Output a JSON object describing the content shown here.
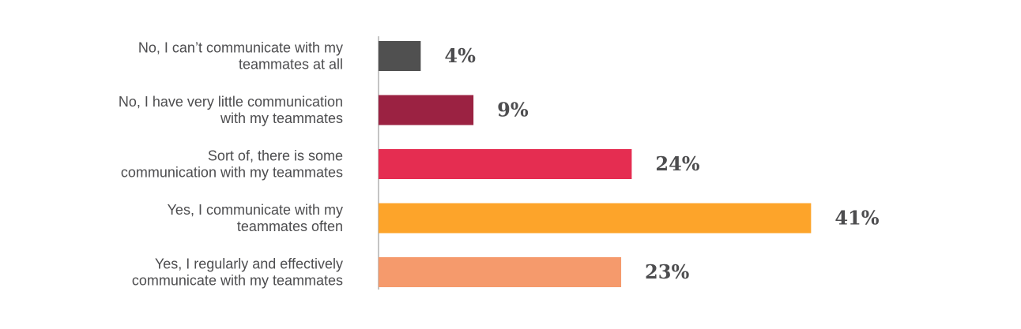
{
  "chart_data": {
    "type": "bar",
    "orientation": "horizontal",
    "categories": [
      [
        "No, I can’t communicate with my",
        "teammates at all"
      ],
      [
        "No, I have very little communication",
        "with my teammates"
      ],
      [
        "Sort of, there is some",
        "communication with my teammates"
      ],
      [
        "Yes, I communicate with my",
        "teammates often"
      ],
      [
        "Yes, I regularly and effectively",
        "communicate with my teammates"
      ]
    ],
    "values": [
      4,
      9,
      24,
      41,
      23
    ],
    "value_labels": [
      "4%",
      "9%",
      "24%",
      "41%",
      "23%"
    ],
    "colors": [
      "#505050",
      "#9b2242",
      "#e52d51",
      "#fda42a",
      "#f59a6c"
    ],
    "title": "",
    "xlabel": "",
    "ylabel": "",
    "xlim": [
      0,
      41
    ],
    "grid": false,
    "legend": "none"
  }
}
